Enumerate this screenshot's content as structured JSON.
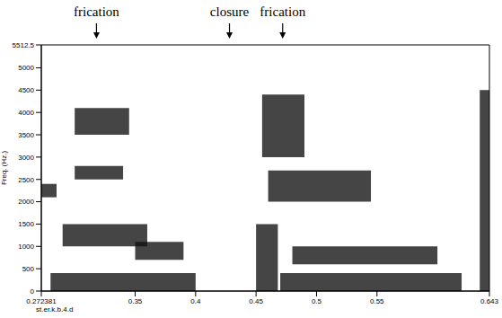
{
  "chart_data": {
    "type": "spectrogram",
    "y_label": "Freq. (Hz.)",
    "x_label": "st.er.k.b.4.d",
    "xlim": [
      0.272381,
      0.643
    ],
    "ylim": [
      0,
      5512.5
    ],
    "xticks": [
      0.272381,
      0.35,
      0.4,
      0.45,
      0.5,
      0.55,
      0.643
    ],
    "yticks": [
      0,
      500,
      1000,
      1500,
      2000,
      2500,
      3000,
      3500,
      4000,
      4500,
      5000,
      5512.5
    ],
    "color": "#111111",
    "annotations": [
      {
        "text": "frication",
        "x": 0.318
      },
      {
        "text": "closure",
        "x": 0.428
      },
      {
        "text": "frication",
        "x": 0.472
      }
    ],
    "energy_regions": [
      {
        "x0": 0.272381,
        "x1": 0.285,
        "y0": 2100,
        "y1": 2400
      },
      {
        "x0": 0.3,
        "x1": 0.345,
        "y0": 3500,
        "y1": 4100
      },
      {
        "x0": 0.3,
        "x1": 0.34,
        "y0": 2500,
        "y1": 2800
      },
      {
        "x0": 0.29,
        "x1": 0.36,
        "y0": 1000,
        "y1": 1500
      },
      {
        "x0": 0.35,
        "x1": 0.39,
        "y0": 700,
        "y1": 1100
      },
      {
        "x0": 0.28,
        "x1": 0.4,
        "y0": 0,
        "y1": 400
      },
      {
        "x0": 0.455,
        "x1": 0.49,
        "y0": 3000,
        "y1": 4400
      },
      {
        "x0": 0.46,
        "x1": 0.545,
        "y0": 2000,
        "y1": 2700
      },
      {
        "x0": 0.45,
        "x1": 0.468,
        "y0": 0,
        "y1": 1500
      },
      {
        "x0": 0.48,
        "x1": 0.6,
        "y0": 600,
        "y1": 1000
      },
      {
        "x0": 0.47,
        "x1": 0.62,
        "y0": 0,
        "y1": 400
      },
      {
        "x0": 0.635,
        "x1": 0.643,
        "y0": 0,
        "y1": 4500
      }
    ]
  }
}
